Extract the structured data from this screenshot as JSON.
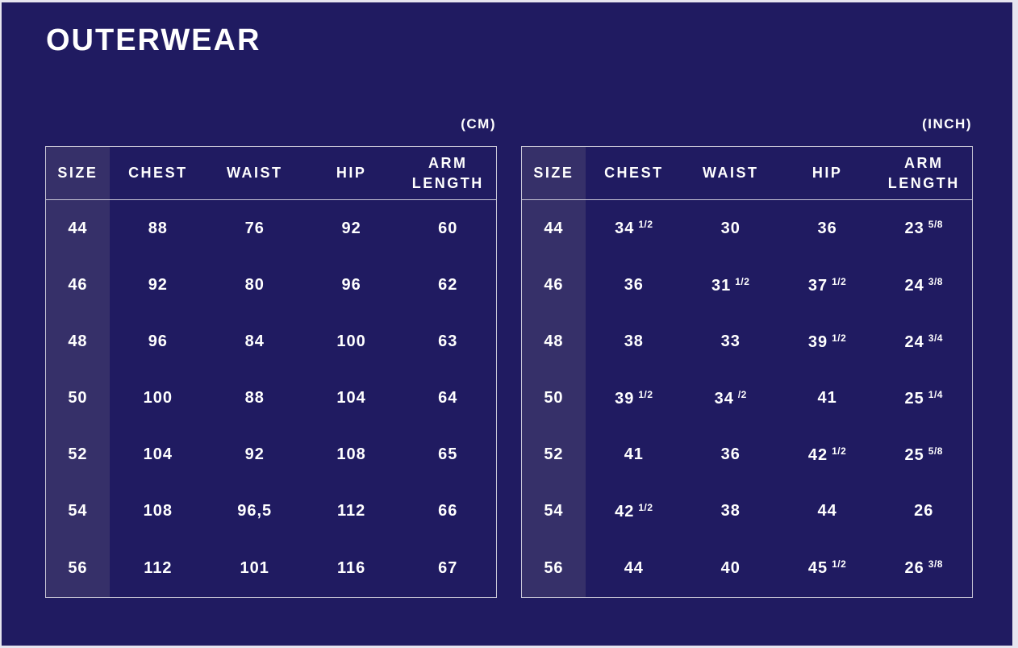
{
  "title": "OUTERWEAR",
  "colors": {
    "background": "#201b61",
    "size_column_highlight": "#363069",
    "table_border": "#c8c6d6",
    "text": "#ffffff",
    "page_frame": "#e6e5ef"
  },
  "tables": [
    {
      "id": "cm",
      "unit_label": "(CM)",
      "columns": [
        "SIZE",
        "CHEST",
        "WAIST",
        "HIP",
        "ARM LENGTH"
      ],
      "rows": [
        [
          "44",
          "88",
          "76",
          "92",
          "60"
        ],
        [
          "46",
          "92",
          "80",
          "96",
          "62"
        ],
        [
          "48",
          "96",
          "84",
          "100",
          "63"
        ],
        [
          "50",
          "100",
          "88",
          "104",
          "64"
        ],
        [
          "52",
          "104",
          "92",
          "108",
          "65"
        ],
        [
          "54",
          "108",
          "96,5",
          "112",
          "66"
        ],
        [
          "56",
          "112",
          "101",
          "116",
          "67"
        ]
      ]
    },
    {
      "id": "inch",
      "unit_label": "(INCH)",
      "columns": [
        "SIZE",
        "CHEST",
        "WAIST",
        "HIP",
        "ARM LENGTH"
      ],
      "rows": [
        [
          "44",
          {
            "t": "34",
            "sup": "1/2"
          },
          "30",
          "36",
          {
            "t": "23",
            "sup": "5/8"
          }
        ],
        [
          "46",
          "36",
          {
            "t": "31",
            "sup": "1/2"
          },
          {
            "t": "37",
            "sup": "1/2"
          },
          {
            "t": "24",
            "sup": "3/8"
          }
        ],
        [
          "48",
          "38",
          "33",
          {
            "t": "39",
            "sup": "1/2"
          },
          {
            "t": "24",
            "sup": "3/4"
          }
        ],
        [
          "50",
          {
            "t": "39",
            "sup": "1/2"
          },
          {
            "t": "34",
            "sup": "/2"
          },
          "41",
          {
            "t": "25",
            "sup": "1/4"
          }
        ],
        [
          "52",
          "41",
          "36",
          {
            "t": "42",
            "sup": "1/2"
          },
          {
            "t": "25",
            "sup": "5/8"
          }
        ],
        [
          "54",
          {
            "t": "42",
            "sup": "1/2"
          },
          "38",
          "44",
          "26"
        ],
        [
          "56",
          "44",
          "40",
          {
            "t": "45",
            "sup": "1/2"
          },
          {
            "t": "26",
            "sup": "3/8"
          }
        ]
      ]
    }
  ]
}
